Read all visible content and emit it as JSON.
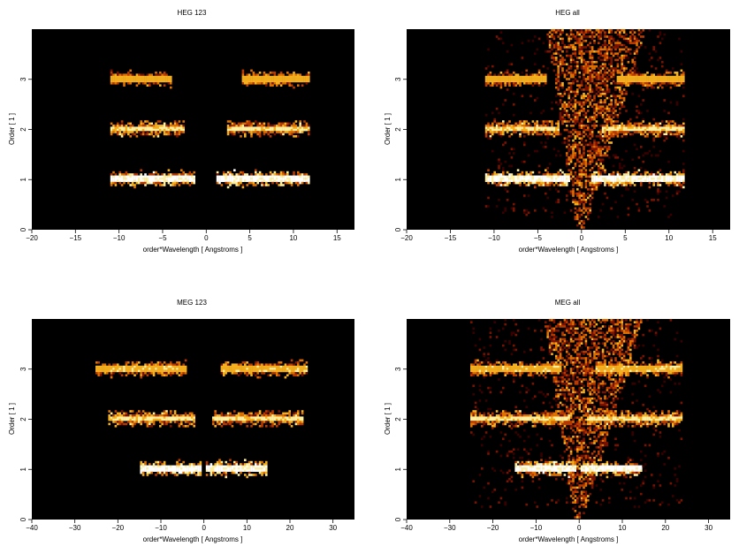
{
  "figure": {
    "background": "#ffffff",
    "plot_background": "#000000",
    "colormap": [
      "#000000",
      "#3a0000",
      "#7a1200",
      "#b83a00",
      "#e07000",
      "#f5b020",
      "#fff0a0",
      "#ffffff"
    ]
  },
  "chart_data": [
    {
      "type": "heatmap",
      "title": "HEG 123",
      "xlabel": "order*Wavelength [ Angstroms ]",
      "ylabel": "Order [ 1 ]",
      "xlim": [
        -20,
        17
      ],
      "ylim": [
        0,
        4
      ],
      "xticks": [
        -20,
        -15,
        -10,
        -5,
        0,
        5,
        10,
        15
      ],
      "yticks": [
        0,
        1,
        2,
        3
      ],
      "features": [
        {
          "kind": "band",
          "order": 1,
          "x_start": -11,
          "x_end": -1.2,
          "intensity": 1.0
        },
        {
          "kind": "band",
          "order": 1,
          "x_start": 1.2,
          "x_end": 12,
          "intensity": 1.0
        },
        {
          "kind": "band",
          "order": 2,
          "x_start": -11,
          "x_end": -2.5,
          "intensity": 0.85
        },
        {
          "kind": "band",
          "order": 2,
          "x_start": 2.5,
          "x_end": 12,
          "intensity": 0.85
        },
        {
          "kind": "band",
          "order": 3,
          "x_start": -11,
          "x_end": -4,
          "intensity": 0.75
        },
        {
          "kind": "band",
          "order": 3,
          "x_start": 4,
          "x_end": 12,
          "intensity": 0.75
        }
      ]
    },
    {
      "type": "heatmap",
      "title": "HEG all",
      "xlabel": "order*Wavelength [ Angstroms ]",
      "ylabel": "Order [ 1 ]",
      "xlim": [
        -20,
        17
      ],
      "ylim": [
        0,
        4
      ],
      "xticks": [
        -20,
        -15,
        -10,
        -5,
        0,
        5,
        10,
        15
      ],
      "yticks": [
        0,
        1,
        2,
        3
      ],
      "features": [
        {
          "kind": "band",
          "order": 1,
          "x_start": -11,
          "x_end": -1.2,
          "intensity": 1.0
        },
        {
          "kind": "band",
          "order": 1,
          "x_start": 1.2,
          "x_end": 12,
          "intensity": 1.0
        },
        {
          "kind": "band",
          "order": 2,
          "x_start": -11,
          "x_end": -2.5,
          "intensity": 0.85
        },
        {
          "kind": "band",
          "order": 2,
          "x_start": 2.5,
          "x_end": 12,
          "intensity": 0.85
        },
        {
          "kind": "band",
          "order": 3,
          "x_start": -11,
          "x_end": -4,
          "intensity": 0.75
        },
        {
          "kind": "band",
          "order": 3,
          "x_start": 4,
          "x_end": 12,
          "intensity": 0.75
        },
        {
          "kind": "halo",
          "x_start": -11,
          "x_end": 12,
          "y_start": 0.2,
          "y_end": 4,
          "intensity": 0.3
        },
        {
          "kind": "v_streak",
          "intensity": 0.7
        }
      ]
    },
    {
      "type": "heatmap",
      "title": "MEG 123",
      "xlabel": "order*Wavelength [ Angstroms ]",
      "ylabel": "Order [ 1 ]",
      "xlim": [
        -40,
        35
      ],
      "ylim": [
        0,
        4
      ],
      "xticks": [
        -40,
        -30,
        -20,
        -10,
        0,
        10,
        20,
        30
      ],
      "yticks": [
        0,
        1,
        2,
        3
      ],
      "features": [
        {
          "kind": "band",
          "order": 1,
          "x_start": -15,
          "x_end": -0.5,
          "intensity": 1.0
        },
        {
          "kind": "band",
          "order": 1,
          "x_start": 0.5,
          "x_end": 15,
          "intensity": 1.0
        },
        {
          "kind": "band",
          "order": 2,
          "x_start": -22,
          "x_end": -2,
          "intensity": 0.85
        },
        {
          "kind": "band",
          "order": 2,
          "x_start": 2,
          "x_end": 23,
          "intensity": 0.85
        },
        {
          "kind": "band",
          "order": 3,
          "x_start": -25,
          "x_end": -4,
          "intensity": 0.8
        },
        {
          "kind": "band",
          "order": 3,
          "x_start": 4,
          "x_end": 24,
          "intensity": 0.8
        }
      ]
    },
    {
      "type": "heatmap",
      "title": "MEG all",
      "xlabel": "order*Wavelength [ Angstroms ]",
      "ylabel": "Order [ 1 ]",
      "xlim": [
        -40,
        35
      ],
      "ylim": [
        0,
        4
      ],
      "xticks": [
        -40,
        -30,
        -20,
        -10,
        0,
        10,
        20,
        30
      ],
      "yticks": [
        0,
        1,
        2,
        3
      ],
      "features": [
        {
          "kind": "band",
          "order": 1,
          "x_start": -15,
          "x_end": -0.5,
          "intensity": 1.0
        },
        {
          "kind": "band",
          "order": 1,
          "x_start": 0.5,
          "x_end": 15,
          "intensity": 1.0
        },
        {
          "kind": "band",
          "order": 2,
          "x_start": -25,
          "x_end": -2,
          "intensity": 0.85
        },
        {
          "kind": "band",
          "order": 2,
          "x_start": 2,
          "x_end": 24,
          "intensity": 0.85
        },
        {
          "kind": "band",
          "order": 3,
          "x_start": -25,
          "x_end": -4,
          "intensity": 0.8
        },
        {
          "kind": "band",
          "order": 3,
          "x_start": 4,
          "x_end": 24,
          "intensity": 0.8
        },
        {
          "kind": "halo",
          "x_start": -25,
          "x_end": 24,
          "y_start": 0.2,
          "y_end": 4,
          "intensity": 0.3
        },
        {
          "kind": "v_streak",
          "intensity": 0.7
        }
      ]
    }
  ]
}
